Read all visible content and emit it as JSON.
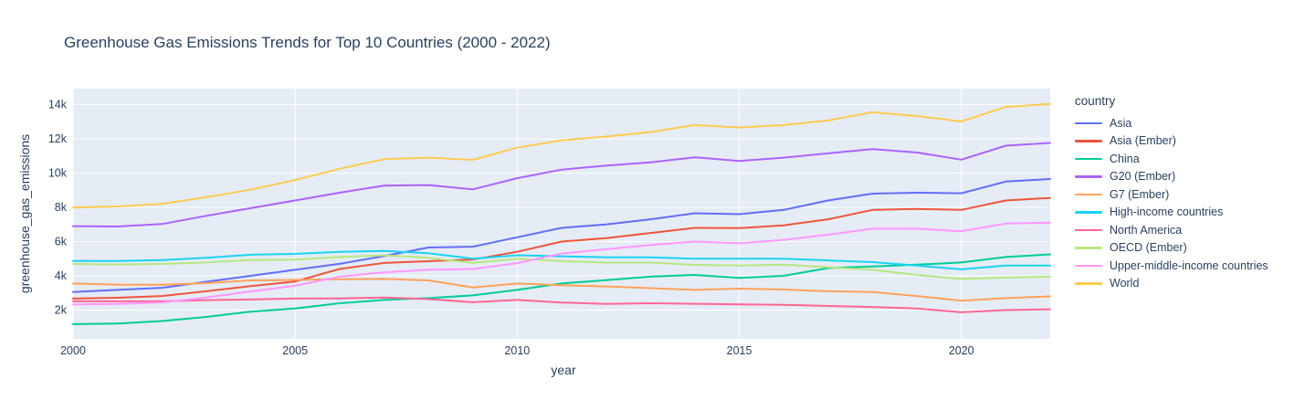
{
  "page": {
    "background_color": "#ffffff",
    "text_color": "#2a3f5f"
  },
  "chart_data": {
    "type": "line",
    "title": "Greenhouse Gas Emissions Trends for Top 10 Countries (2000 - 2022)",
    "xlabel": "year",
    "ylabel": "greenhouse_gas_emissions",
    "legend_title": "country",
    "legend_position": "right",
    "grid": "on",
    "plot_bgcolor": "#E5ECF6",
    "grid_color": "#FFFFFF",
    "line_width": 2,
    "x_range": [
      2000,
      2022
    ],
    "y_range": [
      320,
      14930
    ],
    "x_ticks": [
      2000,
      2005,
      2010,
      2015,
      2020
    ],
    "y_ticks": [
      {
        "value": 2000,
        "label": "2k"
      },
      {
        "value": 4000,
        "label": "4k"
      },
      {
        "value": 6000,
        "label": "6k"
      },
      {
        "value": 8000,
        "label": "8k"
      },
      {
        "value": 10000,
        "label": "10k"
      },
      {
        "value": 12000,
        "label": "12k"
      },
      {
        "value": 14000,
        "label": "14k"
      }
    ],
    "x": [
      2000,
      2001,
      2002,
      2003,
      2004,
      2005,
      2006,
      2007,
      2008,
      2009,
      2010,
      2011,
      2012,
      2013,
      2014,
      2015,
      2016,
      2017,
      2018,
      2019,
      2020,
      2021,
      2022
    ],
    "series": [
      {
        "name": "Asia",
        "color": "#636EFA",
        "values": [
          3050,
          3180,
          3300,
          3650,
          4000,
          4350,
          4700,
          5150,
          5650,
          5700,
          6250,
          6800,
          7000,
          7300,
          7650,
          7600,
          7850,
          8400,
          8800,
          8850,
          8820,
          9500,
          9650
        ]
      },
      {
        "name": "Asia (Ember)",
        "color": "#EF553B",
        "values": [
          2670,
          2720,
          2820,
          3100,
          3400,
          3670,
          4400,
          4750,
          4850,
          4950,
          5400,
          6000,
          6200,
          6500,
          6800,
          6780,
          6950,
          7300,
          7850,
          7900,
          7850,
          8400,
          8550
        ]
      },
      {
        "name": "China",
        "color": "#00CC96",
        "values": [
          1180,
          1210,
          1360,
          1600,
          1910,
          2090,
          2400,
          2590,
          2700,
          2860,
          3180,
          3550,
          3750,
          3950,
          4050,
          3880,
          4000,
          4450,
          4550,
          4650,
          4780,
          5100,
          5250
        ]
      },
      {
        "name": "G20 (Ember)",
        "color": "#AB63FA",
        "values": [
          6900,
          6880,
          7020,
          7500,
          7950,
          8400,
          8850,
          9260,
          9300,
          9050,
          9700,
          10200,
          10430,
          10620,
          10920,
          10700,
          10900,
          11150,
          11400,
          11200,
          10780,
          11600,
          11760
        ]
      },
      {
        "name": "G7 (Ember)",
        "color": "#FFA15A",
        "values": [
          3550,
          3480,
          3480,
          3570,
          3730,
          3760,
          3800,
          3820,
          3730,
          3320,
          3550,
          3450,
          3380,
          3280,
          3180,
          3250,
          3200,
          3100,
          3050,
          2820,
          2550,
          2700,
          2800
        ]
      },
      {
        "name": "High-income countries",
        "color": "#19D3F3",
        "values": [
          4870,
          4870,
          4920,
          5050,
          5230,
          5280,
          5400,
          5450,
          5320,
          5000,
          5200,
          5140,
          5080,
          5080,
          5000,
          5000,
          5000,
          4900,
          4800,
          4600,
          4380,
          4600,
          4600
        ]
      },
      {
        "name": "North America",
        "color": "#FF6692",
        "values": [
          2510,
          2510,
          2510,
          2580,
          2620,
          2670,
          2680,
          2730,
          2640,
          2460,
          2590,
          2440,
          2360,
          2400,
          2370,
          2330,
          2310,
          2240,
          2180,
          2090,
          1870,
          2000,
          2050
        ]
      },
      {
        "name": "OECD (Ember)",
        "color": "#B6E880",
        "values": [
          4690,
          4660,
          4690,
          4780,
          4920,
          4950,
          5100,
          5200,
          5050,
          4750,
          5000,
          4860,
          4770,
          4770,
          4640,
          4600,
          4650,
          4500,
          4350,
          4050,
          3820,
          3900,
          3950
        ]
      },
      {
        "name": "Upper-middle-income countries",
        "color": "#FF97FF",
        "values": [
          2330,
          2360,
          2450,
          2730,
          3090,
          3420,
          3950,
          4200,
          4350,
          4400,
          4740,
          5300,
          5550,
          5800,
          6000,
          5900,
          6100,
          6400,
          6750,
          6750,
          6600,
          7050,
          7100
        ]
      },
      {
        "name": "World",
        "color": "#FECB52",
        "values": [
          7980,
          8050,
          8200,
          8590,
          9030,
          9590,
          10250,
          10810,
          10900,
          10770,
          11480,
          11910,
          12130,
          12390,
          12800,
          12660,
          12800,
          13070,
          13550,
          13330,
          13010,
          13860,
          14040
        ]
      }
    ]
  }
}
